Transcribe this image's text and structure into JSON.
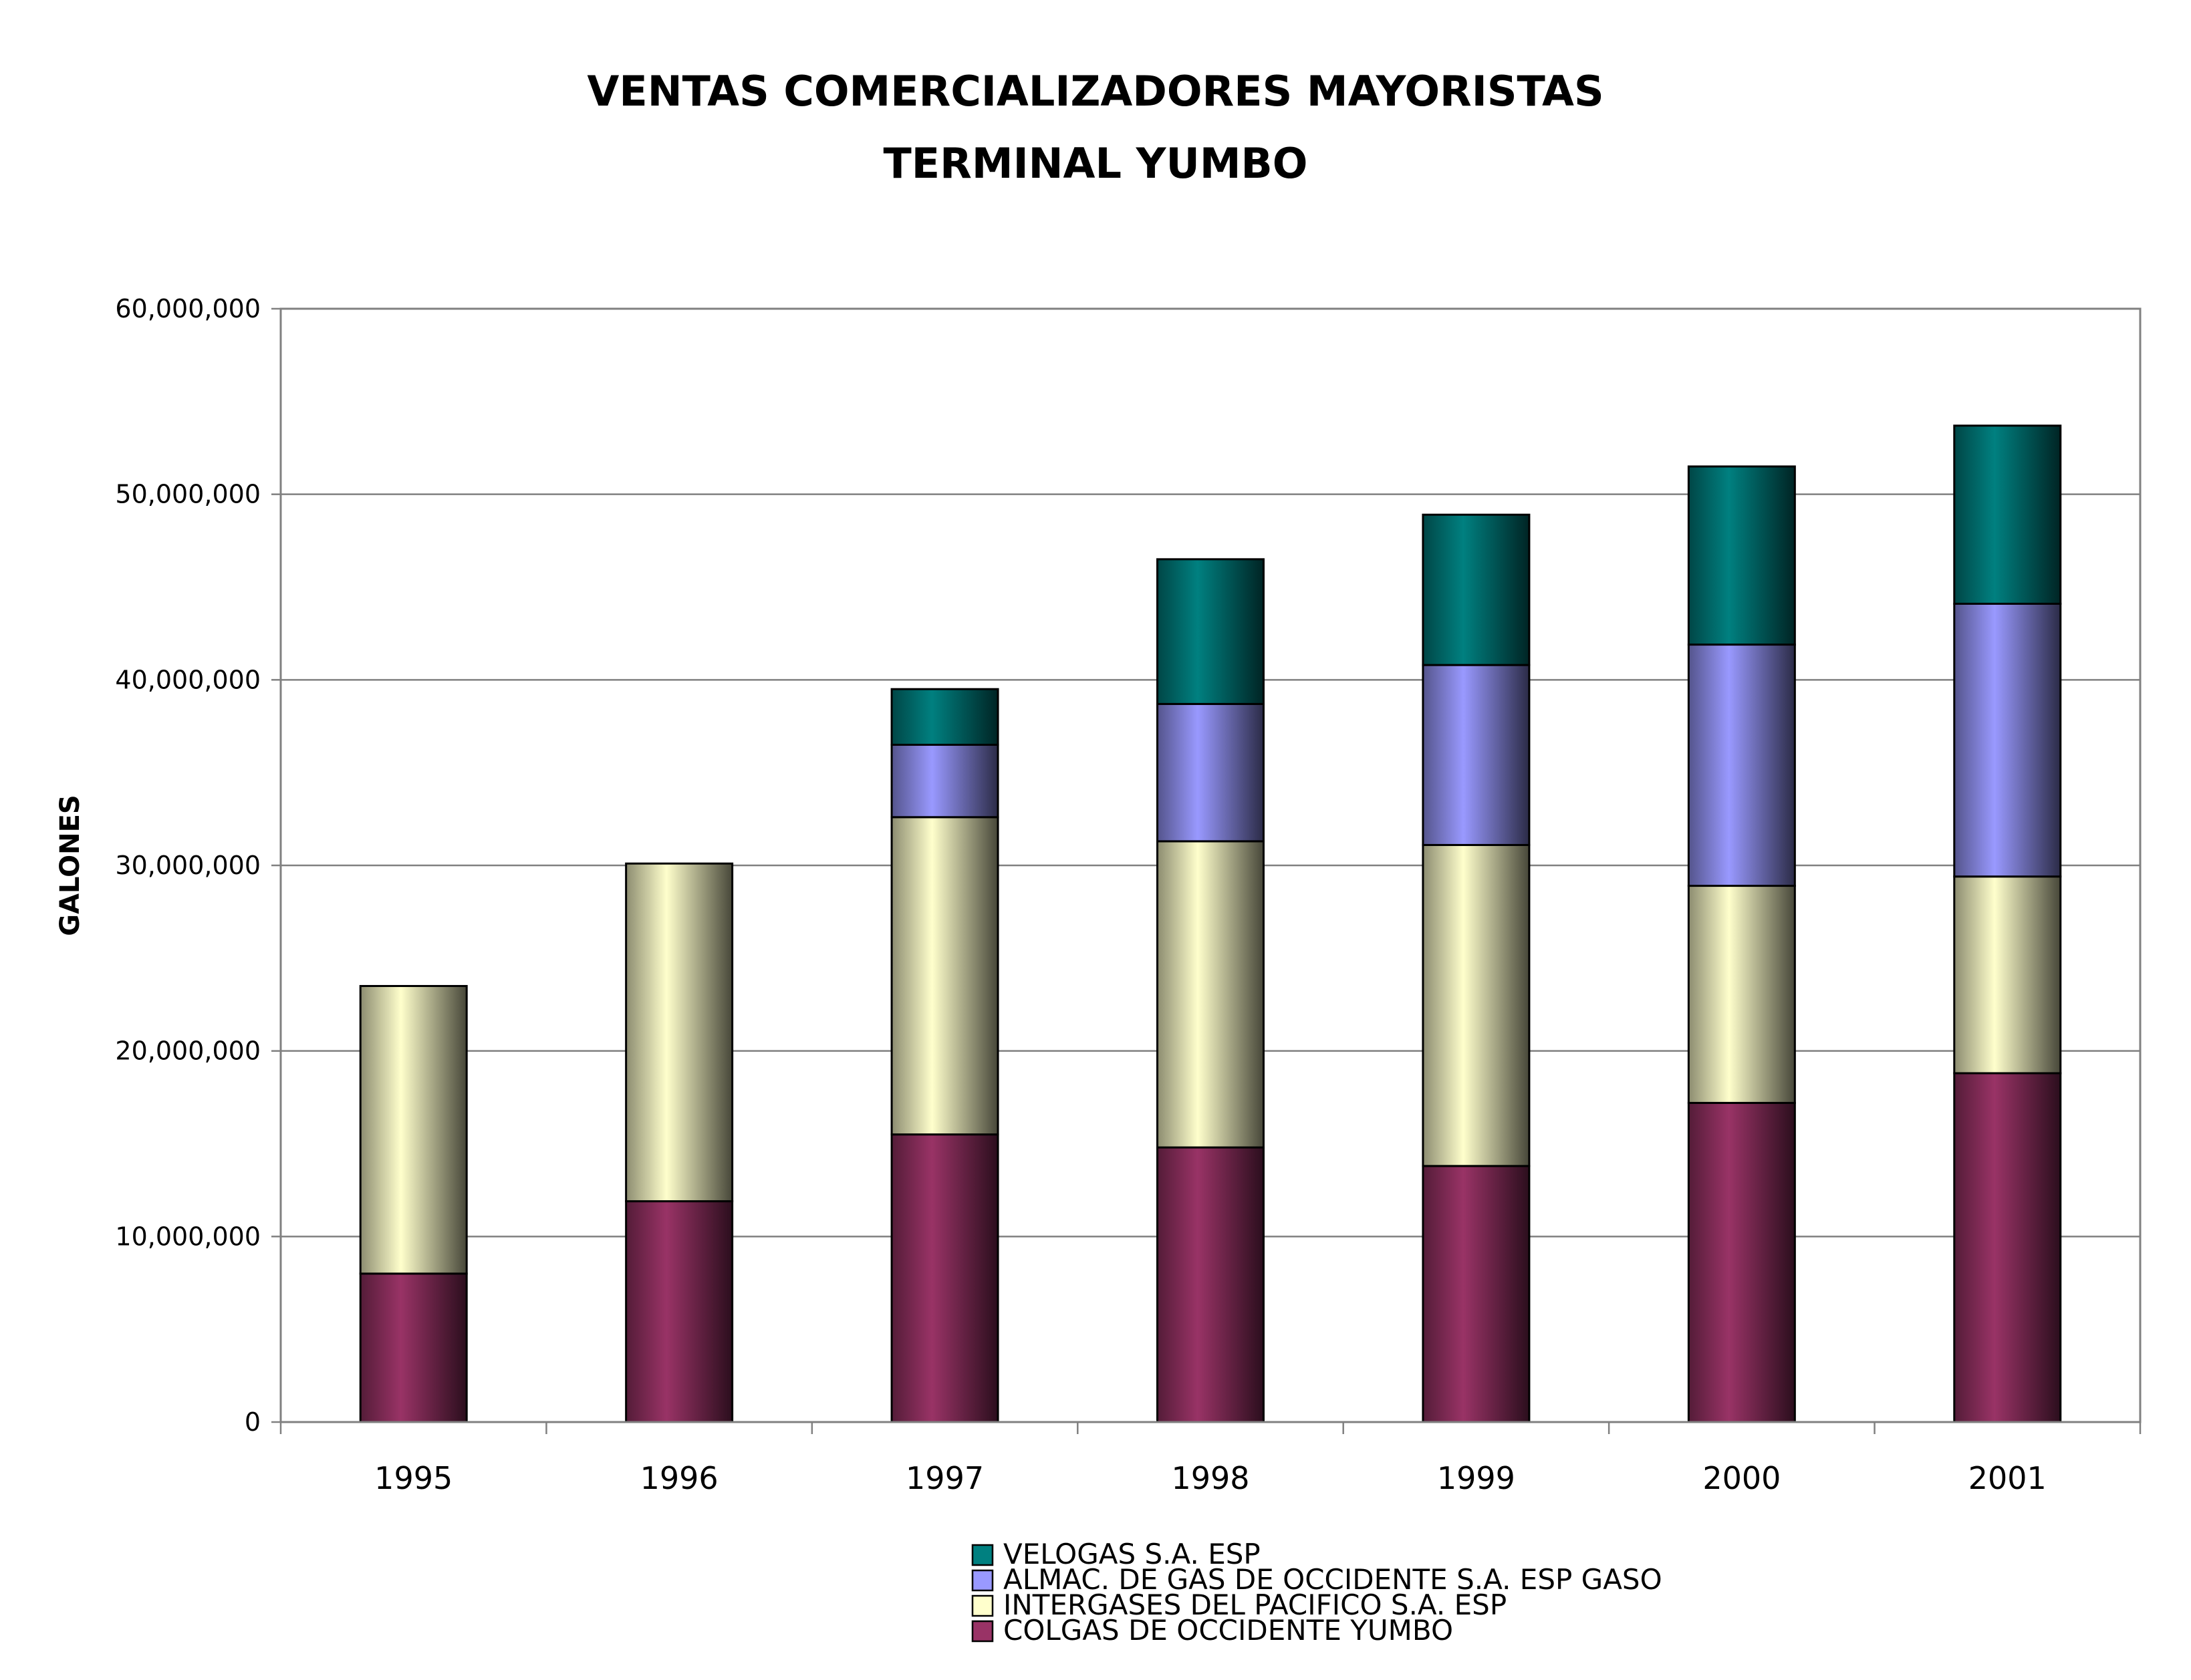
{
  "chart_data": {
    "type": "bar",
    "stacked": true,
    "title": "VENTAS COMERCIALIZADORES MAYORISTAS",
    "subtitle": "TERMINAL YUMBO",
    "xlabel": "",
    "ylabel": "GALONES",
    "ylim": [
      0,
      60000000
    ],
    "yticks": [
      0,
      10000000,
      20000000,
      30000000,
      40000000,
      50000000,
      60000000
    ],
    "ytick_labels": [
      "0",
      "10,000,000",
      "20,000,000",
      "30,000,000",
      "40,000,000",
      "50,000,000",
      "60,000,000"
    ],
    "grid": true,
    "legend_position": "bottom",
    "categories": [
      "1995",
      "1996",
      "1997",
      "1998",
      "1999",
      "2000",
      "2001"
    ],
    "series": [
      {
        "name": "COLGAS DE OCCIDENTE YUMBO",
        "color": "#993366",
        "values": [
          8000000,
          11900000,
          15500000,
          14800000,
          13800000,
          17200000,
          18800000
        ]
      },
      {
        "name": "INTERGASES DEL PACIFICO S.A. ESP",
        "color": "#FFFFCC",
        "values": [
          15500000,
          18200000,
          17100000,
          16500000,
          17300000,
          11700000,
          10600000
        ]
      },
      {
        "name": "ALMAC. DE GAS DE OCCIDENTE S.A. ESP GASO",
        "color": "#9999FF",
        "values": [
          0,
          0,
          3900000,
          7400000,
          9700000,
          13000000,
          14700000
        ]
      },
      {
        "name": "VELOGAS S.A. ESP",
        "color": "#008080",
        "values": [
          0,
          0,
          3000000,
          7800000,
          8100000,
          9600000,
          9600000
        ]
      }
    ],
    "legend_order": [
      3,
      2,
      1,
      0
    ]
  }
}
